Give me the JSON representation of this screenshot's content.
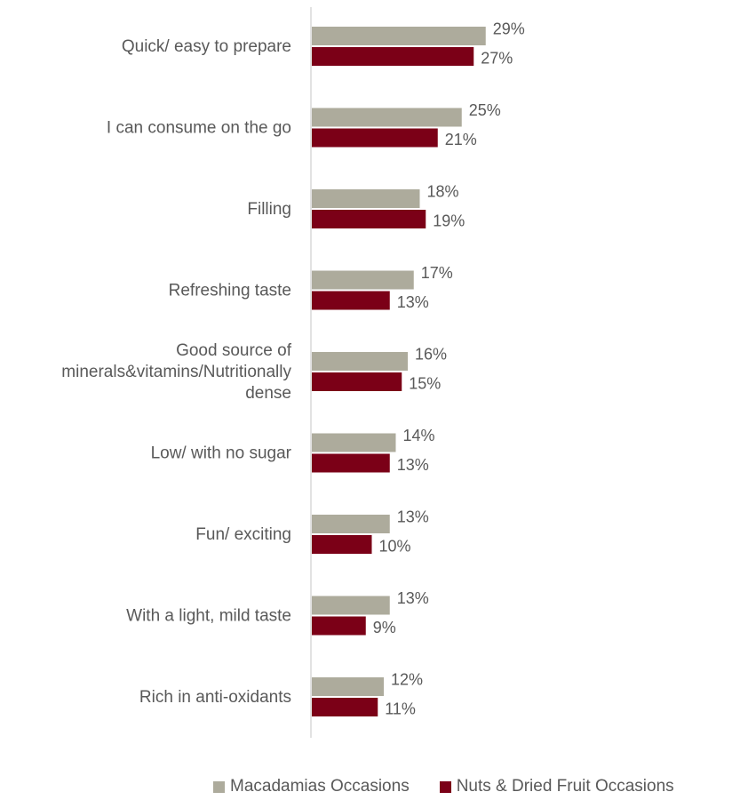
{
  "chart_data": {
    "type": "bar",
    "orientation": "horizontal",
    "categories": [
      "Quick/ easy to prepare",
      "I can consume on the go",
      "Filling",
      "Refreshing taste",
      "Good source of minerals&vitamins/Nutritionally dense",
      "Low/ with no sugar",
      "Fun/ exciting",
      "With a light, mild taste",
      "Rich in anti-oxidants"
    ],
    "category_lines": [
      [
        "Quick/ easy to prepare"
      ],
      [
        "I can consume on the go"
      ],
      [
        "Filling"
      ],
      [
        "Refreshing taste"
      ],
      [
        "Good source of",
        "minerals&vitamins/Nutritionally",
        "dense"
      ],
      [
        "Low/ with no sugar"
      ],
      [
        "Fun/ exciting"
      ],
      [
        "With a light, mild taste"
      ],
      [
        "Rich in anti-oxidants"
      ]
    ],
    "series": [
      {
        "name": "Macadamias Occasions",
        "color": "#ADAB9C",
        "values": [
          29,
          25,
          18,
          17,
          16,
          14,
          13,
          13,
          12
        ],
        "labels": [
          "29%",
          "25%",
          "18%",
          "17%",
          "16%",
          "14%",
          "13%",
          "13%",
          "12%"
        ]
      },
      {
        "name": "Nuts & Dried Fruit Occasions",
        "color": "#7B0017",
        "values": [
          27,
          21,
          19,
          13,
          15,
          13,
          10,
          9,
          11
        ],
        "labels": [
          "27%",
          "21%",
          "19%",
          "13%",
          "15%",
          "13%",
          "10%",
          "9%",
          "11%"
        ]
      }
    ],
    "unit": "%",
    "xlim": [
      0,
      70
    ],
    "axis_color": "#D9D9D9",
    "grid": false,
    "legend_position": "bottom",
    "title": "",
    "xlabel": "",
    "ylabel": ""
  }
}
